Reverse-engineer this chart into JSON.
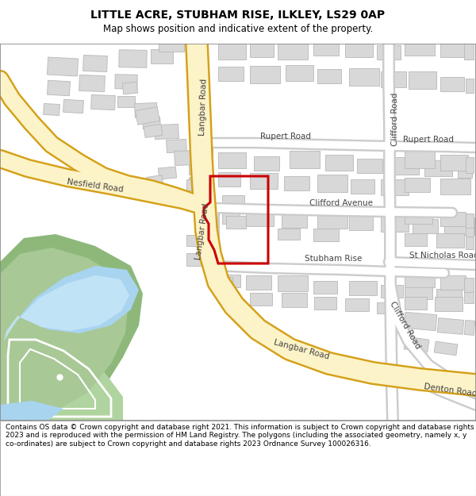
{
  "title_line1": "LITTLE ACRE, STUBHAM RISE, ILKLEY, LS29 0AP",
  "title_line2": "Map shows position and indicative extent of the property.",
  "footer_text": "Contains OS data © Crown copyright and database right 2021. This information is subject to Crown copyright and database rights 2023 and is reproduced with the permission of HM Land Registry. The polygons (including the associated geometry, namely x, y co-ordinates) are subject to Crown copyright and database rights 2023 Ordnance Survey 100026316.",
  "road_fill": "#fdf3c8",
  "road_border": "#d4a017",
  "white_road_fill": "#ffffff",
  "white_road_border": "#cccccc",
  "green_outer": "#8db87a",
  "green_inner": "#a8c896",
  "green_sports": "#b0d4a0",
  "blue_water": "#a8d4f0",
  "blue_inner": "#c8e8f8",
  "building_fill": "#d8d8d8",
  "building_edge": "#b8b8b8",
  "plot_red": "#cc0000",
  "map_bg": "#ffffff",
  "road_text": "#444444"
}
